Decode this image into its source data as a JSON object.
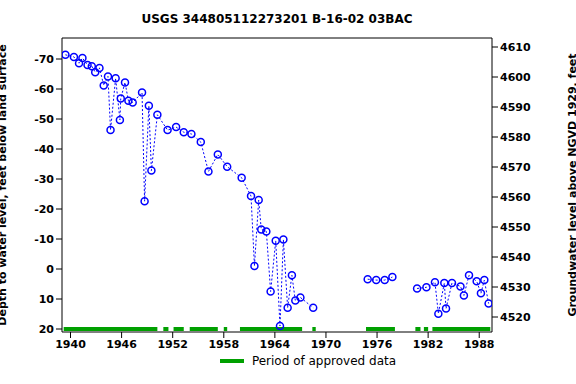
{
  "chart_data": {
    "type": "line",
    "title": "USGS 344805112273201 B-16-02 03BAC",
    "y_label": "Depth to water level, feet below land surface",
    "y2_label": "Groundwater level above NGVD 1929, feet",
    "x": [
      1939.4,
      1940.4,
      1941,
      1941.4,
      1942,
      1942.5,
      1942.9,
      1943.4,
      1943.9,
      1944.4,
      1944.7,
      1945.3,
      1945.8,
      1945.9,
      1946.4,
      1946.8,
      1947.3,
      1948.4,
      1948.7,
      1949.2,
      1949.5,
      1950.2,
      1951.4,
      1952.4,
      1953.3,
      1954.2,
      1955.3,
      1956.2,
      1957.3,
      1958.4,
      1960.1,
      1961.2,
      1961.6,
      1962.1,
      1962.4,
      1963,
      1963.5,
      1964.1,
      1964.6,
      1965,
      1965.5,
      1966,
      1966.4,
      1967,
      1968.5,
      1971,
      1974.9,
      1975.9,
      1976.9,
      1977.8,
      1979,
      1980.7,
      1981.8,
      1982.8,
      1983.2,
      1983.9,
      1984.1,
      1984.8,
      1985.8,
      1986.2,
      1986.8,
      1987.7,
      1988.2,
      1988.6,
      1989.1
    ],
    "series": [
      {
        "color": "#0000ff",
        "marker": "circle",
        "line_style": "dotted",
        "values": [
          -71.4,
          -70.7,
          -68.6,
          -70.3,
          -68,
          -67.6,
          -65.6,
          -67,
          -61.2,
          -64.2,
          -46.3,
          -63.6,
          -49.7,
          -56.8,
          -62.2,
          -56.1,
          -55.5,
          -58.8,
          -22.6,
          -54.4,
          -32.8,
          -51.4,
          -46.3,
          -47.3,
          -45.6,
          -45,
          -42.3,
          -32.5,
          -38.2,
          -34.1,
          -30.4,
          -24.3,
          -1,
          -23,
          -13.2,
          -12.5,
          7.5,
          -9.4,
          19,
          -9.8,
          12.9,
          2.1,
          10.5,
          9.5,
          12.9,
          null,
          3.4,
          3.7,
          3.7,
          2.7,
          null,
          6.5,
          6.1,
          4.4,
          14.9,
          4.7,
          13.2,
          4.7,
          5.8,
          8.8,
          2.1,
          4.1,
          8.1,
          3.7,
          11.5
        ]
      }
    ],
    "approved_periods": {
      "name": "Period of approved data",
      "color": "#00a000",
      "ranges": [
        [
          1939.2,
          1950.2
        ],
        [
          1950.9,
          1951.5
        ],
        [
          1952.1,
          1953.3
        ],
        [
          1954,
          1957.3
        ],
        [
          1958,
          1958.4
        ],
        [
          1959.9,
          1967.2
        ],
        [
          1968.4,
          1968.8
        ],
        [
          1974.7,
          1978.1
        ],
        [
          1980.5,
          1981.1
        ],
        [
          1981.5,
          1982
        ],
        [
          1982.5,
          1989.3
        ]
      ]
    },
    "xlim": [
      1939,
      1989.5
    ],
    "xticks": [
      1940,
      1946,
      1952,
      1958,
      1964,
      1970,
      1976,
      1982,
      1988
    ],
    "ylim": [
      -77,
      21
    ],
    "yticks": [
      -70,
      -60,
      -50,
      -40,
      -30,
      -20,
      -10,
      0,
      10,
      20
    ],
    "y2lim": [
      4515,
      4613
    ],
    "y2ticks": [
      4520,
      4530,
      4540,
      4550,
      4560,
      4570,
      4580,
      4590,
      4600,
      4610
    ]
  }
}
